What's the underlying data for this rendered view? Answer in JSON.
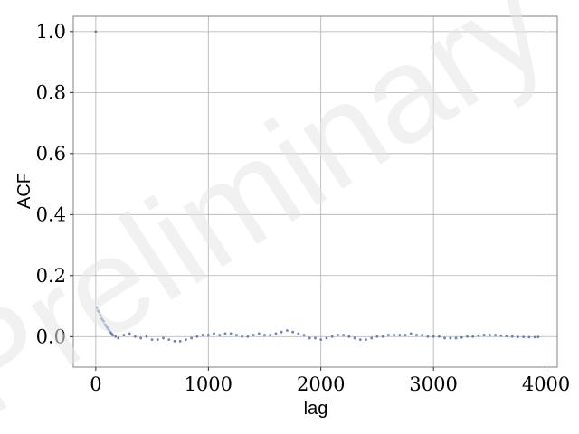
{
  "chart_data": {
    "type": "scatter",
    "title": "",
    "xlabel": "lag",
    "ylabel": "ACF",
    "xlim": [
      -200,
      4100
    ],
    "ylim": [
      -0.1,
      1.05
    ],
    "xticks": [
      0,
      1000,
      2000,
      3000,
      4000
    ],
    "xtick_labels": [
      "0",
      "1000",
      "2000",
      "3000",
      "4000"
    ],
    "yticks": [
      0.0,
      0.2,
      0.4,
      0.6,
      0.8,
      1.0
    ],
    "ytick_labels": [
      "0.0",
      "0.2",
      "0.4",
      "0.6",
      "0.8",
      "1.0"
    ],
    "grid": true,
    "marker_color": "#4c72b0",
    "watermark": "Preliminary",
    "points": [
      [
        0,
        1.0
      ],
      [
        10,
        0.095
      ],
      [
        20,
        0.085
      ],
      [
        30,
        0.08
      ],
      [
        40,
        0.07
      ],
      [
        50,
        0.06
      ],
      [
        60,
        0.055
      ],
      [
        70,
        0.05
      ],
      [
        80,
        0.04
      ],
      [
        90,
        0.035
      ],
      [
        100,
        0.03
      ],
      [
        110,
        0.025
      ],
      [
        120,
        0.02
      ],
      [
        130,
        0.015
      ],
      [
        140,
        0.01
      ],
      [
        150,
        0.005
      ],
      [
        175,
        0.0
      ],
      [
        200,
        -0.005
      ],
      [
        250,
        0.005
      ],
      [
        300,
        0.01
      ],
      [
        350,
        0.0
      ],
      [
        400,
        -0.005
      ],
      [
        450,
        0.0
      ],
      [
        500,
        -0.01
      ],
      [
        550,
        -0.01
      ],
      [
        600,
        -0.005
      ],
      [
        650,
        -0.01
      ],
      [
        700,
        -0.015
      ],
      [
        750,
        -0.015
      ],
      [
        800,
        -0.01
      ],
      [
        850,
        -0.005
      ],
      [
        900,
        0.0
      ],
      [
        950,
        0.005
      ],
      [
        1000,
        0.005
      ],
      [
        1050,
        0.01
      ],
      [
        1100,
        0.005
      ],
      [
        1150,
        0.01
      ],
      [
        1200,
        0.01
      ],
      [
        1250,
        0.005
      ],
      [
        1300,
        0.0
      ],
      [
        1350,
        0.0
      ],
      [
        1400,
        0.005
      ],
      [
        1450,
        0.01
      ],
      [
        1500,
        0.005
      ],
      [
        1550,
        0.005
      ],
      [
        1600,
        0.01
      ],
      [
        1650,
        0.015
      ],
      [
        1700,
        0.02
      ],
      [
        1750,
        0.015
      ],
      [
        1800,
        0.01
      ],
      [
        1850,
        0.005
      ],
      [
        1900,
        -0.005
      ],
      [
        1950,
        -0.005
      ],
      [
        2000,
        -0.01
      ],
      [
        2050,
        -0.005
      ],
      [
        2100,
        0.0
      ],
      [
        2150,
        0.005
      ],
      [
        2200,
        0.005
      ],
      [
        2250,
        0.0
      ],
      [
        2300,
        -0.005
      ],
      [
        2350,
        -0.01
      ],
      [
        2400,
        -0.01
      ],
      [
        2450,
        -0.005
      ],
      [
        2500,
        0.0
      ],
      [
        2550,
        0.0
      ],
      [
        2600,
        0.005
      ],
      [
        2650,
        0.005
      ],
      [
        2700,
        0.005
      ],
      [
        2750,
        0.005
      ],
      [
        2800,
        0.01
      ],
      [
        2850,
        0.005
      ],
      [
        2900,
        0.005
      ],
      [
        2950,
        0.0
      ],
      [
        3000,
        0.0
      ],
      [
        3050,
        0.0
      ],
      [
        3100,
        -0.005
      ],
      [
        3150,
        -0.005
      ],
      [
        3200,
        -0.005
      ],
      [
        3250,
        -0.003
      ],
      [
        3300,
        0.0
      ],
      [
        3350,
        0.0
      ],
      [
        3400,
        0.003
      ],
      [
        3450,
        0.005
      ],
      [
        3500,
        0.005
      ],
      [
        3550,
        0.005
      ],
      [
        3600,
        0.003
      ],
      [
        3650,
        0.002
      ],
      [
        3700,
        0.0
      ],
      [
        3750,
        -0.001
      ],
      [
        3800,
        -0.001
      ],
      [
        3850,
        -0.002
      ],
      [
        3900,
        -0.002
      ],
      [
        3930,
        -0.001
      ]
    ]
  }
}
